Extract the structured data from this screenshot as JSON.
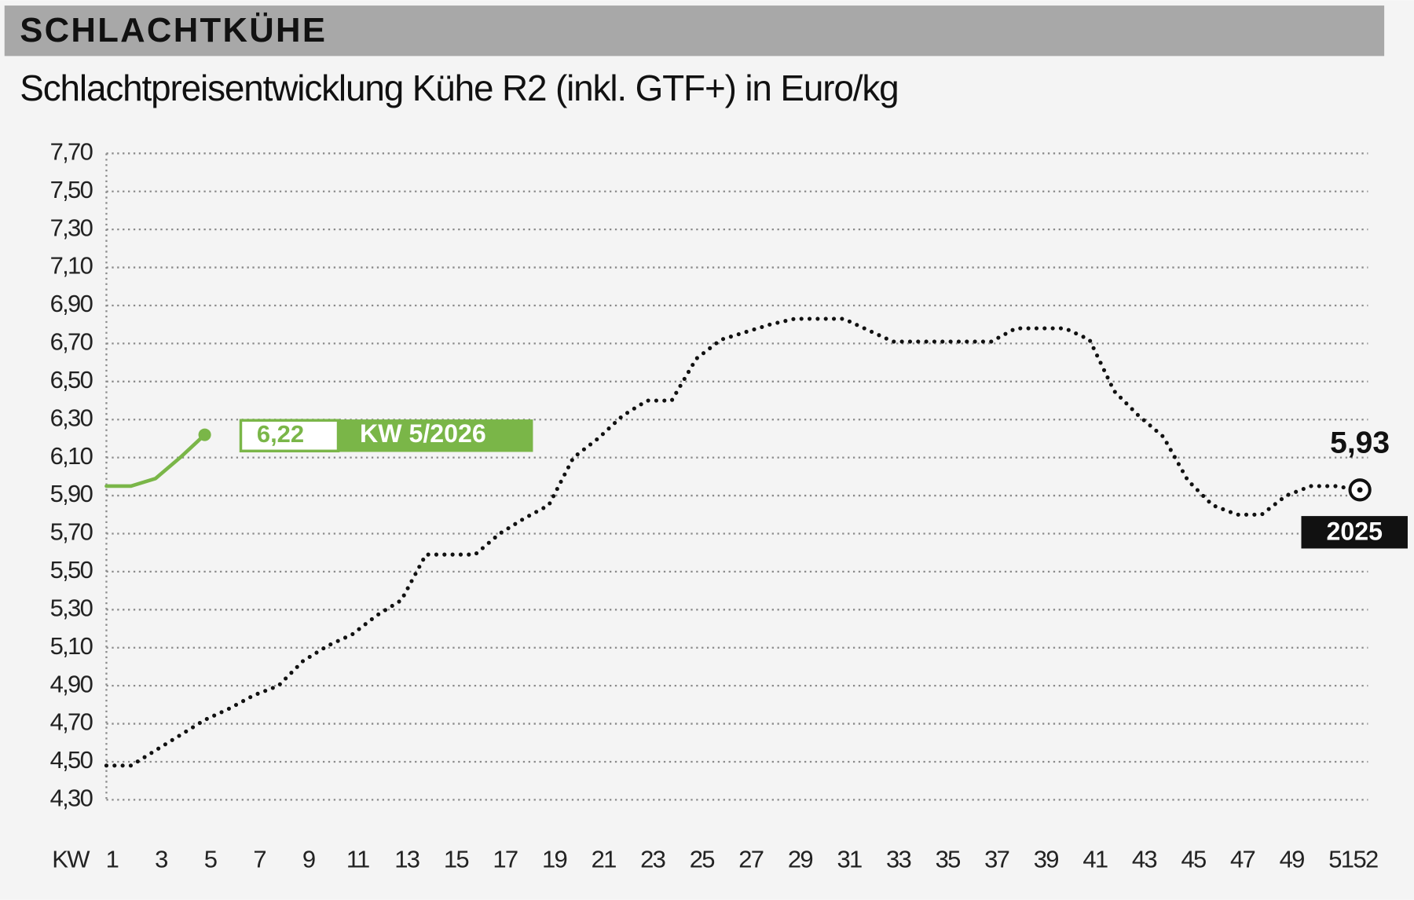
{
  "chart_data": {
    "type": "line",
    "header": "SCHLACHTKÜHE",
    "title": "Schlachtpreisentwicklung Kühe R2 (inkl. GTF+) in Euro/kg",
    "xlabel": "KW",
    "xlim": [
      1,
      52
    ],
    "xticks": [
      1,
      3,
      5,
      7,
      9,
      11,
      13,
      15,
      17,
      19,
      21,
      23,
      25,
      27,
      29,
      31,
      33,
      35,
      37,
      39,
      41,
      43,
      45,
      47,
      49,
      51,
      52
    ],
    "ylim": [
      4.3,
      7.7
    ],
    "yticks": [
      {
        "value": 4.3,
        "label": "4,30"
      },
      {
        "value": 4.5,
        "label": "4,50"
      },
      {
        "value": 4.7,
        "label": "4,70"
      },
      {
        "value": 4.9,
        "label": "4,90"
      },
      {
        "value": 5.1,
        "label": "5,10"
      },
      {
        "value": 5.3,
        "label": "5,30"
      },
      {
        "value": 5.5,
        "label": "5,50"
      },
      {
        "value": 5.7,
        "label": "5,70"
      },
      {
        "value": 5.9,
        "label": "5,90"
      },
      {
        "value": 6.1,
        "label": "6,10"
      },
      {
        "value": 6.3,
        "label": "6,30"
      },
      {
        "value": 6.5,
        "label": "6,50"
      },
      {
        "value": 6.7,
        "label": "6,70"
      },
      {
        "value": 6.9,
        "label": "6,90"
      },
      {
        "value": 7.1,
        "label": "7,10"
      },
      {
        "value": 7.3,
        "label": "7,30"
      },
      {
        "value": 7.5,
        "label": "7,50"
      },
      {
        "value": 7.7,
        "label": "7,70"
      }
    ],
    "grid": true,
    "series": [
      {
        "name": "2025",
        "color": "#111111",
        "style": "dotted",
        "x": [
          1,
          2,
          3,
          4,
          5,
          6,
          7,
          8,
          9,
          10,
          11,
          12,
          13,
          14,
          15,
          16,
          17,
          18,
          19,
          20,
          21,
          22,
          23,
          24,
          25,
          26,
          27,
          28,
          29,
          30,
          31,
          32,
          33,
          34,
          35,
          36,
          37,
          38,
          39,
          40,
          41,
          42,
          43,
          44,
          45,
          46,
          47,
          48,
          49,
          50,
          51,
          52
        ],
        "values": [
          4.48,
          4.48,
          4.56,
          4.64,
          4.72,
          4.78,
          4.85,
          4.9,
          5.03,
          5.11,
          5.17,
          5.27,
          5.35,
          5.59,
          5.59,
          5.59,
          5.7,
          5.78,
          5.85,
          6.1,
          6.2,
          6.32,
          6.4,
          6.4,
          6.62,
          6.72,
          6.76,
          6.8,
          6.83,
          6.83,
          6.83,
          6.77,
          6.71,
          6.71,
          6.71,
          6.71,
          6.71,
          6.78,
          6.78,
          6.78,
          6.72,
          6.45,
          6.32,
          6.21,
          5.98,
          5.85,
          5.8,
          5.8,
          5.9,
          5.95,
          5.95,
          5.93
        ],
        "value_labels": [
          null,
          null,
          null,
          null,
          null,
          null,
          null,
          null,
          null,
          null,
          null,
          null,
          null,
          null,
          null,
          null,
          null,
          null,
          null,
          null,
          null,
          null,
          null,
          null,
          null,
          null,
          null,
          null,
          null,
          null,
          null,
          null,
          null,
          null,
          null,
          null,
          null,
          null,
          null,
          null,
          null,
          null,
          null,
          null,
          null,
          null,
          null,
          null,
          null,
          null,
          null,
          "5,93"
        ]
      },
      {
        "name": "KW 5/2026",
        "color": "#7ab648",
        "style": "solid",
        "x": [
          1,
          2,
          3,
          4,
          5
        ],
        "values": [
          5.95,
          5.95,
          5.99,
          6.1,
          6.22
        ],
        "value_labels": [
          null,
          null,
          null,
          null,
          "6,22"
        ]
      }
    ]
  }
}
